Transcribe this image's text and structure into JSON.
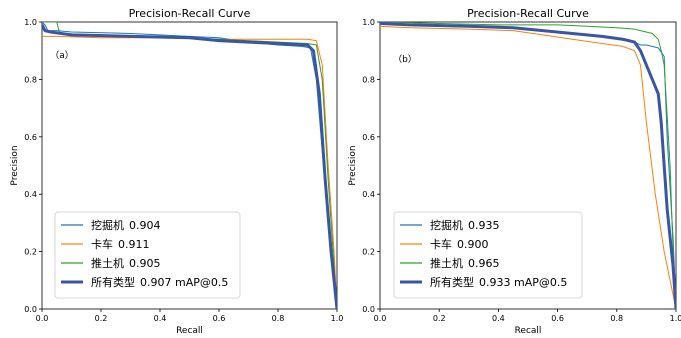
{
  "chart_data": [
    {
      "type": "line",
      "panel_label": "（a）",
      "title": "Precision-Recall Curve",
      "xlabel": "Recall",
      "ylabel": "Precision",
      "xlim": [
        0.0,
        1.0
      ],
      "ylim": [
        0.0,
        1.0
      ],
      "xticks": [
        "0.0",
        "0.2",
        "0.4",
        "0.6",
        "0.8",
        "1.0"
      ],
      "yticks": [
        "0.0",
        "0.2",
        "0.4",
        "0.6",
        "0.8",
        "1.0"
      ],
      "grid": false,
      "legend_position": "lower-left",
      "series": [
        {
          "name": "挖掘机",
          "value_label": "0.904",
          "color": "#1f77b4",
          "points": [
            [
              0.0,
              1.0
            ],
            [
              0.01,
              0.99
            ],
            [
              0.02,
              0.97
            ],
            [
              0.05,
              0.97
            ],
            [
              0.1,
              0.965
            ],
            [
              0.3,
              0.96
            ],
            [
              0.5,
              0.95
            ],
            [
              0.6,
              0.945
            ],
            [
              0.7,
              0.93
            ],
            [
              0.8,
              0.92
            ],
            [
              0.88,
              0.915
            ],
            [
              0.91,
              0.91
            ],
            [
              0.93,
              0.8
            ],
            [
              0.95,
              0.55
            ],
            [
              0.97,
              0.3
            ],
            [
              1.0,
              0.0
            ]
          ]
        },
        {
          "name": "卡车",
          "value_label": "0.911",
          "color": "#ff7f0e",
          "points": [
            [
              0.0,
              0.95
            ],
            [
              0.05,
              0.95
            ],
            [
              0.2,
              0.945
            ],
            [
              0.4,
              0.945
            ],
            [
              0.6,
              0.94
            ],
            [
              0.8,
              0.94
            ],
            [
              0.9,
              0.94
            ],
            [
              0.93,
              0.935
            ],
            [
              0.95,
              0.85
            ],
            [
              0.97,
              0.5
            ],
            [
              0.99,
              0.2
            ],
            [
              1.0,
              0.0
            ]
          ]
        },
        {
          "name": "推土机",
          "value_label": "0.905",
          "color": "#2ca02c",
          "points": [
            [
              0.0,
              1.0
            ],
            [
              0.05,
              1.0
            ],
            [
              0.06,
              0.96
            ],
            [
              0.2,
              0.955
            ],
            [
              0.4,
              0.95
            ],
            [
              0.6,
              0.94
            ],
            [
              0.8,
              0.93
            ],
            [
              0.9,
              0.925
            ],
            [
              0.93,
              0.92
            ],
            [
              0.95,
              0.8
            ],
            [
              0.97,
              0.45
            ],
            [
              0.99,
              0.15
            ],
            [
              1.0,
              0.0
            ]
          ]
        },
        {
          "name": "所有类型",
          "value_label": "0.907 mAP@0.5",
          "color": "#3a55a4",
          "bold": true,
          "points": [
            [
              0.0,
              0.99
            ],
            [
              0.01,
              0.97
            ],
            [
              0.03,
              0.965
            ],
            [
              0.1,
              0.955
            ],
            [
              0.3,
              0.95
            ],
            [
              0.5,
              0.945
            ],
            [
              0.6,
              0.935
            ],
            [
              0.7,
              0.93
            ],
            [
              0.8,
              0.925
            ],
            [
              0.9,
              0.92
            ],
            [
              0.92,
              0.9
            ],
            [
              0.94,
              0.75
            ],
            [
              0.96,
              0.45
            ],
            [
              0.98,
              0.2
            ],
            [
              1.0,
              0.0
            ]
          ]
        }
      ]
    },
    {
      "type": "line",
      "panel_label": "（b）",
      "title": "Precision-Recall Curve",
      "xlabel": "Recall",
      "ylabel": "Precision",
      "xlim": [
        0.0,
        1.0
      ],
      "ylim": [
        0.0,
        1.0
      ],
      "xticks": [
        "0.0",
        "0.2",
        "0.4",
        "0.6",
        "0.8",
        "1.0"
      ],
      "yticks": [
        "0.0",
        "0.2",
        "0.4",
        "0.6",
        "0.8",
        "1.0"
      ],
      "grid": false,
      "legend_position": "lower-left",
      "series": [
        {
          "name": "挖掘机",
          "value_label": "0.935",
          "color": "#1f77b4",
          "points": [
            [
              0.0,
              1.0
            ],
            [
              0.05,
              0.99
            ],
            [
              0.2,
              0.985
            ],
            [
              0.4,
              0.98
            ],
            [
              0.5,
              0.975
            ],
            [
              0.6,
              0.965
            ],
            [
              0.7,
              0.955
            ],
            [
              0.8,
              0.94
            ],
            [
              0.86,
              0.93
            ],
            [
              0.88,
              0.92
            ],
            [
              0.9,
              0.92
            ],
            [
              0.94,
              0.91
            ],
            [
              0.96,
              0.88
            ],
            [
              0.97,
              0.6
            ],
            [
              0.99,
              0.25
            ],
            [
              1.0,
              0.0
            ]
          ]
        },
        {
          "name": "卡车",
          "value_label": "0.900",
          "color": "#ff7f0e",
          "points": [
            [
              0.0,
              0.985
            ],
            [
              0.1,
              0.98
            ],
            [
              0.3,
              0.975
            ],
            [
              0.45,
              0.97
            ],
            [
              0.55,
              0.955
            ],
            [
              0.65,
              0.94
            ],
            [
              0.75,
              0.925
            ],
            [
              0.82,
              0.915
            ],
            [
              0.86,
              0.9
            ],
            [
              0.88,
              0.85
            ],
            [
              0.9,
              0.65
            ],
            [
              0.93,
              0.4
            ],
            [
              0.96,
              0.2
            ],
            [
              1.0,
              0.0
            ]
          ]
        },
        {
          "name": "推土机",
          "value_label": "0.965",
          "color": "#2ca02c",
          "points": [
            [
              0.0,
              1.0
            ],
            [
              0.2,
              0.995
            ],
            [
              0.4,
              0.99
            ],
            [
              0.6,
              0.99
            ],
            [
              0.7,
              0.985
            ],
            [
              0.8,
              0.98
            ],
            [
              0.86,
              0.975
            ],
            [
              0.88,
              0.97
            ],
            [
              0.92,
              0.96
            ],
            [
              0.94,
              0.94
            ],
            [
              0.95,
              0.9
            ],
            [
              0.96,
              0.85
            ],
            [
              0.98,
              0.5
            ],
            [
              0.99,
              0.2
            ],
            [
              1.0,
              0.0
            ]
          ]
        },
        {
          "name": "所有类型",
          "value_label": "0.933 mAP@0.5",
          "color": "#3a55a4",
          "bold": true,
          "points": [
            [
              0.0,
              0.995
            ],
            [
              0.1,
              0.99
            ],
            [
              0.3,
              0.985
            ],
            [
              0.45,
              0.98
            ],
            [
              0.55,
              0.97
            ],
            [
              0.65,
              0.96
            ],
            [
              0.75,
              0.95
            ],
            [
              0.82,
              0.94
            ],
            [
              0.86,
              0.93
            ],
            [
              0.88,
              0.9
            ],
            [
              0.9,
              0.85
            ],
            [
              0.92,
              0.8
            ],
            [
              0.94,
              0.75
            ],
            [
              0.95,
              0.65
            ],
            [
              0.96,
              0.5
            ],
            [
              0.97,
              0.35
            ],
            [
              0.99,
              0.15
            ],
            [
              1.0,
              0.0
            ]
          ]
        }
      ]
    }
  ]
}
